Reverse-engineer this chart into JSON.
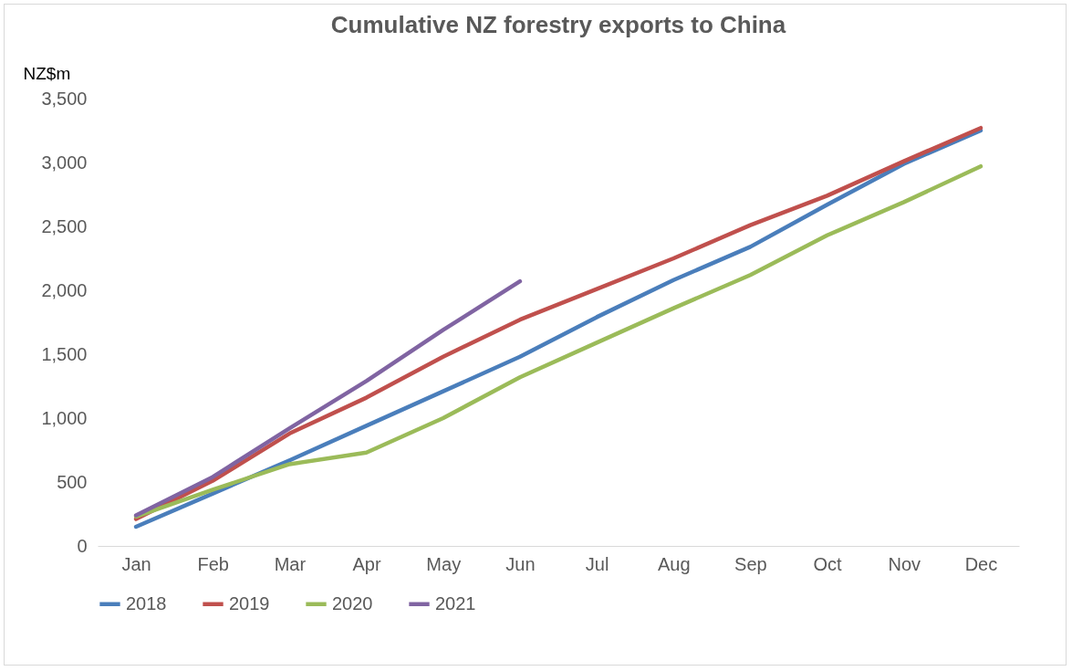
{
  "chart_data": {
    "type": "line",
    "title": "Cumulative NZ forestry exports to China",
    "ylabel": "NZ$m",
    "categories": [
      "Jan",
      "Feb",
      "Mar",
      "Apr",
      "May",
      "Jun",
      "Jul",
      "Aug",
      "Sep",
      "Oct",
      "Nov",
      "Dec"
    ],
    "series": [
      {
        "name": "2018",
        "color": "#4a7ebb",
        "values": [
          150,
          410,
          670,
          940,
          1210,
          1480,
          1790,
          2080,
          2340,
          2670,
          2990,
          3250
        ]
      },
      {
        "name": "2019",
        "color": "#c0504d",
        "values": [
          210,
          510,
          880,
          1160,
          1480,
          1770,
          2010,
          2250,
          2510,
          2740,
          3010,
          3270
        ]
      },
      {
        "name": "2020",
        "color": "#9bbb59",
        "values": [
          230,
          440,
          640,
          730,
          1000,
          1320,
          1590,
          1860,
          2120,
          2430,
          2690,
          2970
        ]
      },
      {
        "name": "2021",
        "color": "#8064a2",
        "values": [
          240,
          540,
          920,
          1290,
          1690,
          2070,
          null,
          null,
          null,
          null,
          null,
          null
        ]
      }
    ],
    "ylim": [
      0,
      3500
    ],
    "yticks": [
      0,
      500,
      {
        "value": 1000,
        "label": "1,000"
      },
      {
        "value": 1500,
        "label": "1,500"
      },
      {
        "value": 2000,
        "label": "2,000"
      },
      {
        "value": 2500,
        "label": "2,500"
      },
      {
        "value": 3000,
        "label": "3,000"
      },
      {
        "value": 3500,
        "label": "3,500"
      }
    ],
    "grid": false,
    "legend": "bottom",
    "marker": "none",
    "line_style": "solid"
  }
}
